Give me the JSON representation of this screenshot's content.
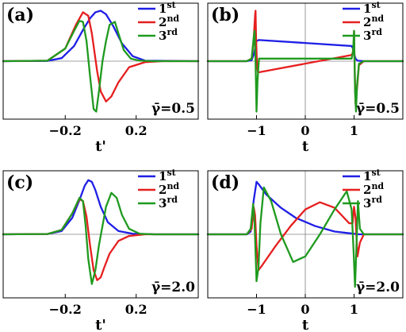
{
  "colors": {
    "first": "#1f1fe6",
    "second": "#e61f1f",
    "third": "#1f9a1f"
  },
  "legend": {
    "items": [
      {
        "base": "1",
        "sup": "st",
        "color": "#1f1fe6"
      },
      {
        "base": "2",
        "sup": "nd",
        "color": "#e61f1f"
      },
      {
        "base": "3",
        "sup": "rd",
        "color": "#1f9a1f"
      }
    ],
    "placement": "top-right"
  },
  "chart_data": [
    {
      "type": "line",
      "panel": "(a)",
      "annotation": "γ̄=0.5",
      "xlabel": "t'",
      "xticks": [
        "−0.2",
        "0.2"
      ],
      "xlim": [
        -0.55,
        0.55
      ],
      "ylim": [
        -1.15,
        1.15
      ],
      "grid": false,
      "series": [
        {
          "name": "1st",
          "x": [
            -0.55,
            -0.3,
            -0.22,
            -0.15,
            -0.1,
            -0.06,
            -0.03,
            0.0,
            0.03,
            0.07,
            0.12,
            0.18,
            0.25,
            0.55
          ],
          "y": [
            0,
            0.005,
            0.06,
            0.3,
            0.62,
            0.85,
            0.97,
            1.0,
            0.93,
            0.7,
            0.35,
            0.1,
            0.01,
            0
          ]
        },
        {
          "name": "2nd",
          "x": [
            -0.55,
            -0.3,
            -0.2,
            -0.14,
            -0.1,
            -0.07,
            -0.05,
            -0.02,
            0.0,
            0.03,
            0.06,
            0.1,
            0.16,
            0.25,
            0.35,
            0.55
          ],
          "y": [
            0,
            0.01,
            0.25,
            0.72,
            0.97,
            0.9,
            0.55,
            -0.2,
            -0.6,
            -0.8,
            -0.7,
            -0.42,
            -0.12,
            -0.02,
            0,
            0
          ]
        },
        {
          "name": "3rd",
          "x": [
            -0.55,
            -0.3,
            -0.2,
            -0.15,
            -0.12,
            -0.1,
            -0.08,
            -0.06,
            -0.04,
            -0.025,
            -0.01,
            0.01,
            0.03,
            0.05,
            0.08,
            0.1,
            0.13,
            0.17,
            0.22,
            0.3,
            0.55
          ],
          "y": [
            0,
            0.01,
            0.25,
            0.6,
            0.8,
            0.78,
            0.4,
            -0.3,
            -0.95,
            -1.0,
            -0.6,
            0.0,
            0.4,
            0.72,
            0.78,
            0.55,
            0.22,
            0.05,
            0.01,
            0,
            0
          ]
        }
      ]
    },
    {
      "type": "line",
      "panel": "(b)",
      "annotation": "γ̄=0.5",
      "xlabel": "t",
      "xticks": [
        "−1",
        "0",
        "1"
      ],
      "xlim": [
        -2.0,
        2.0
      ],
      "ylim": [
        -1.15,
        1.15
      ],
      "grid": false,
      "series": [
        {
          "name": "1st",
          "x": [
            -2,
            -1.2,
            -1.1,
            -1.05,
            -1.02,
            -1.0,
            -0.95,
            0.95,
            0.98,
            1.0,
            1.03,
            1.07,
            1.2,
            2
          ],
          "y": [
            0,
            0,
            0.02,
            0.15,
            0.3,
            0.4,
            0.42,
            0.3,
            0.25,
            0.15,
            0.05,
            0.01,
            0,
            0
          ]
        },
        {
          "name": "2nd",
          "x": [
            -2,
            -1.2,
            -1.1,
            -1.06,
            -1.03,
            -1.02,
            -1.01,
            -0.99,
            -0.97,
            -0.95,
            0.94,
            0.97,
            0.99,
            1.0,
            1.01,
            1.03,
            1.06,
            1.1,
            1.2,
            2
          ],
          "y": [
            0,
            0,
            0.05,
            0.4,
            0.9,
            1.0,
            0.5,
            -0.1,
            -0.22,
            -0.22,
            0.12,
            0.15,
            0.3,
            0.6,
            0.0,
            -0.85,
            -0.55,
            -0.08,
            0,
            0
          ]
        },
        {
          "name": "3rd",
          "x": [
            -2,
            -1.2,
            -1.1,
            -1.06,
            -1.04,
            -1.02,
            -1.0,
            -0.98,
            -0.95,
            -0.9,
            0.9,
            0.95,
            0.98,
            1.0,
            1.02,
            1.04,
            1.06,
            1.1,
            1.2,
            2
          ],
          "y": [
            0,
            0,
            0.05,
            0.45,
            0.6,
            0.0,
            -1.0,
            -0.4,
            0.05,
            0.05,
            0.05,
            0.05,
            0.2,
            0.6,
            -0.6,
            -1.0,
            -0.5,
            -0.05,
            0,
            0
          ]
        }
      ]
    },
    {
      "type": "line",
      "panel": "(c)",
      "annotation": "γ̄=2.0",
      "xlabel": "t'",
      "xticks": [
        "−0.2",
        "0.2"
      ],
      "xlim": [
        -0.55,
        0.55
      ],
      "ylim": [
        -1.15,
        1.15
      ],
      "grid": false,
      "series": [
        {
          "name": "1st",
          "x": [
            -0.55,
            -0.3,
            -0.22,
            -0.16,
            -0.12,
            -0.09,
            -0.07,
            -0.05,
            -0.03,
            0.0,
            0.04,
            0.1,
            0.18,
            0.3,
            0.55
          ],
          "y": [
            0,
            0.005,
            0.06,
            0.3,
            0.62,
            0.88,
            0.98,
            0.95,
            0.8,
            0.5,
            0.22,
            0.06,
            0.01,
            0,
            0
          ]
        },
        {
          "name": "2nd",
          "x": [
            -0.55,
            -0.3,
            -0.22,
            -0.16,
            -0.12,
            -0.1,
            -0.08,
            -0.06,
            -0.04,
            -0.02,
            0.0,
            0.02,
            0.05,
            0.1,
            0.16,
            0.25,
            0.4,
            0.55
          ],
          "y": [
            0,
            0.005,
            0.08,
            0.38,
            0.64,
            0.6,
            0.32,
            -0.2,
            -0.65,
            -0.83,
            -0.78,
            -0.6,
            -0.35,
            -0.12,
            -0.03,
            0,
            0,
            0
          ]
        },
        {
          "name": "3rd",
          "x": [
            -0.55,
            -0.3,
            -0.22,
            -0.16,
            -0.12,
            -0.1,
            -0.085,
            -0.07,
            -0.05,
            -0.03,
            -0.01,
            0.01,
            0.03,
            0.06,
            0.09,
            0.12,
            0.16,
            0.22,
            0.3,
            0.55
          ],
          "y": [
            0,
            0.005,
            0.08,
            0.38,
            0.66,
            0.6,
            0.15,
            -0.45,
            -0.9,
            -0.65,
            -0.2,
            0.15,
            0.5,
            0.75,
            0.66,
            0.35,
            0.1,
            0.01,
            0,
            0
          ]
        }
      ]
    },
    {
      "type": "line",
      "panel": "(d)",
      "annotation": "γ̄=2.0",
      "xlabel": "t",
      "xticks": [
        "−1",
        "0",
        "1"
      ],
      "xlim": [
        -2.0,
        2.0
      ],
      "ylim": [
        -1.15,
        1.15
      ],
      "grid": false,
      "series": [
        {
          "name": "1st",
          "x": [
            -2,
            -1.2,
            -1.12,
            -1.06,
            -1.0,
            -0.95,
            -0.8,
            -0.5,
            -0.2,
            0.2,
            0.6,
            1.0,
            1.1,
            1.3,
            2
          ],
          "y": [
            0,
            0,
            0.05,
            0.6,
            0.95,
            0.9,
            0.72,
            0.48,
            0.3,
            0.15,
            0.05,
            0.01,
            0,
            0,
            0
          ]
        },
        {
          "name": "2nd",
          "x": [
            -2,
            -1.2,
            -1.1,
            -1.06,
            -1.03,
            -1.0,
            -0.96,
            -0.9,
            -0.6,
            -0.3,
            0.0,
            0.3,
            0.6,
            0.9,
            0.97,
            1.0,
            1.03,
            1.07,
            1.12,
            1.2,
            2
          ],
          "y": [
            0,
            0,
            0.1,
            0.5,
            0.35,
            -0.2,
            -0.65,
            -0.58,
            -0.2,
            0.15,
            0.45,
            0.58,
            0.48,
            0.2,
            0.2,
            0.5,
            0.3,
            -0.4,
            -0.15,
            0,
            0
          ]
        },
        {
          "name": "3rd",
          "x": [
            -2,
            -1.2,
            -1.12,
            -1.07,
            -1.04,
            -1.0,
            -0.96,
            -0.92,
            -0.85,
            -0.7,
            -0.5,
            -0.25,
            0.0,
            0.3,
            0.6,
            0.85,
            0.95,
            0.99,
            1.02,
            1.05,
            1.08,
            1.12,
            1.2,
            2
          ],
          "y": [
            0,
            0,
            0.1,
            0.55,
            0.2,
            -0.85,
            -0.6,
            0.2,
            0.85,
            0.6,
            0.0,
            -0.5,
            -0.4,
            0.0,
            0.45,
            0.78,
            0.45,
            -0.3,
            -0.95,
            -0.2,
            0.6,
            0.1,
            0,
            0
          ]
        }
      ]
    }
  ]
}
